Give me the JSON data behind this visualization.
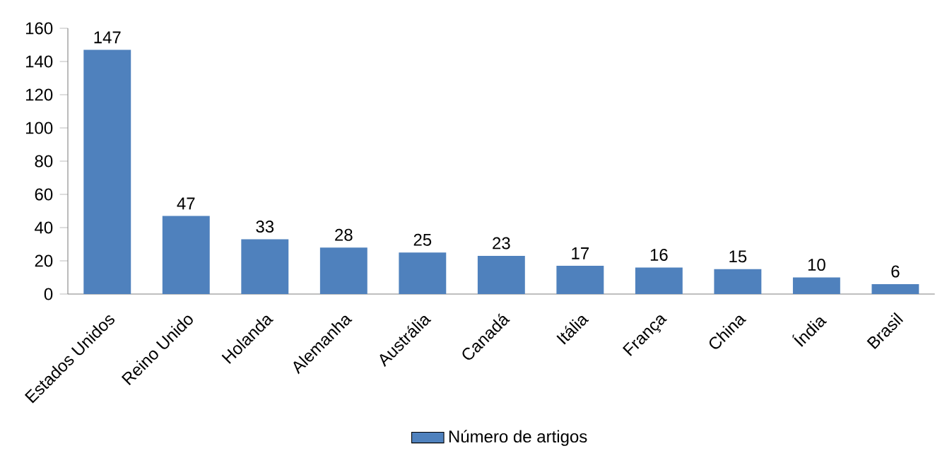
{
  "chart_data": {
    "type": "bar",
    "categories": [
      "Estados Unidos",
      "Reino Unido",
      "Holanda",
      "Alemanha",
      "Austrália",
      "Canadá",
      "Itália",
      "França",
      "China",
      "Índia",
      "Brasil"
    ],
    "series": [
      {
        "name": "Número de artigos",
        "color": "#4f81bd",
        "values": [
          147,
          47,
          33,
          28,
          25,
          23,
          17,
          16,
          15,
          10,
          6
        ]
      }
    ],
    "ylim": [
      0,
      160
    ],
    "yticks": [
      0,
      20,
      40,
      60,
      80,
      100,
      120,
      140,
      160
    ],
    "data_labels": true,
    "legend": "bottom",
    "grid": false
  }
}
